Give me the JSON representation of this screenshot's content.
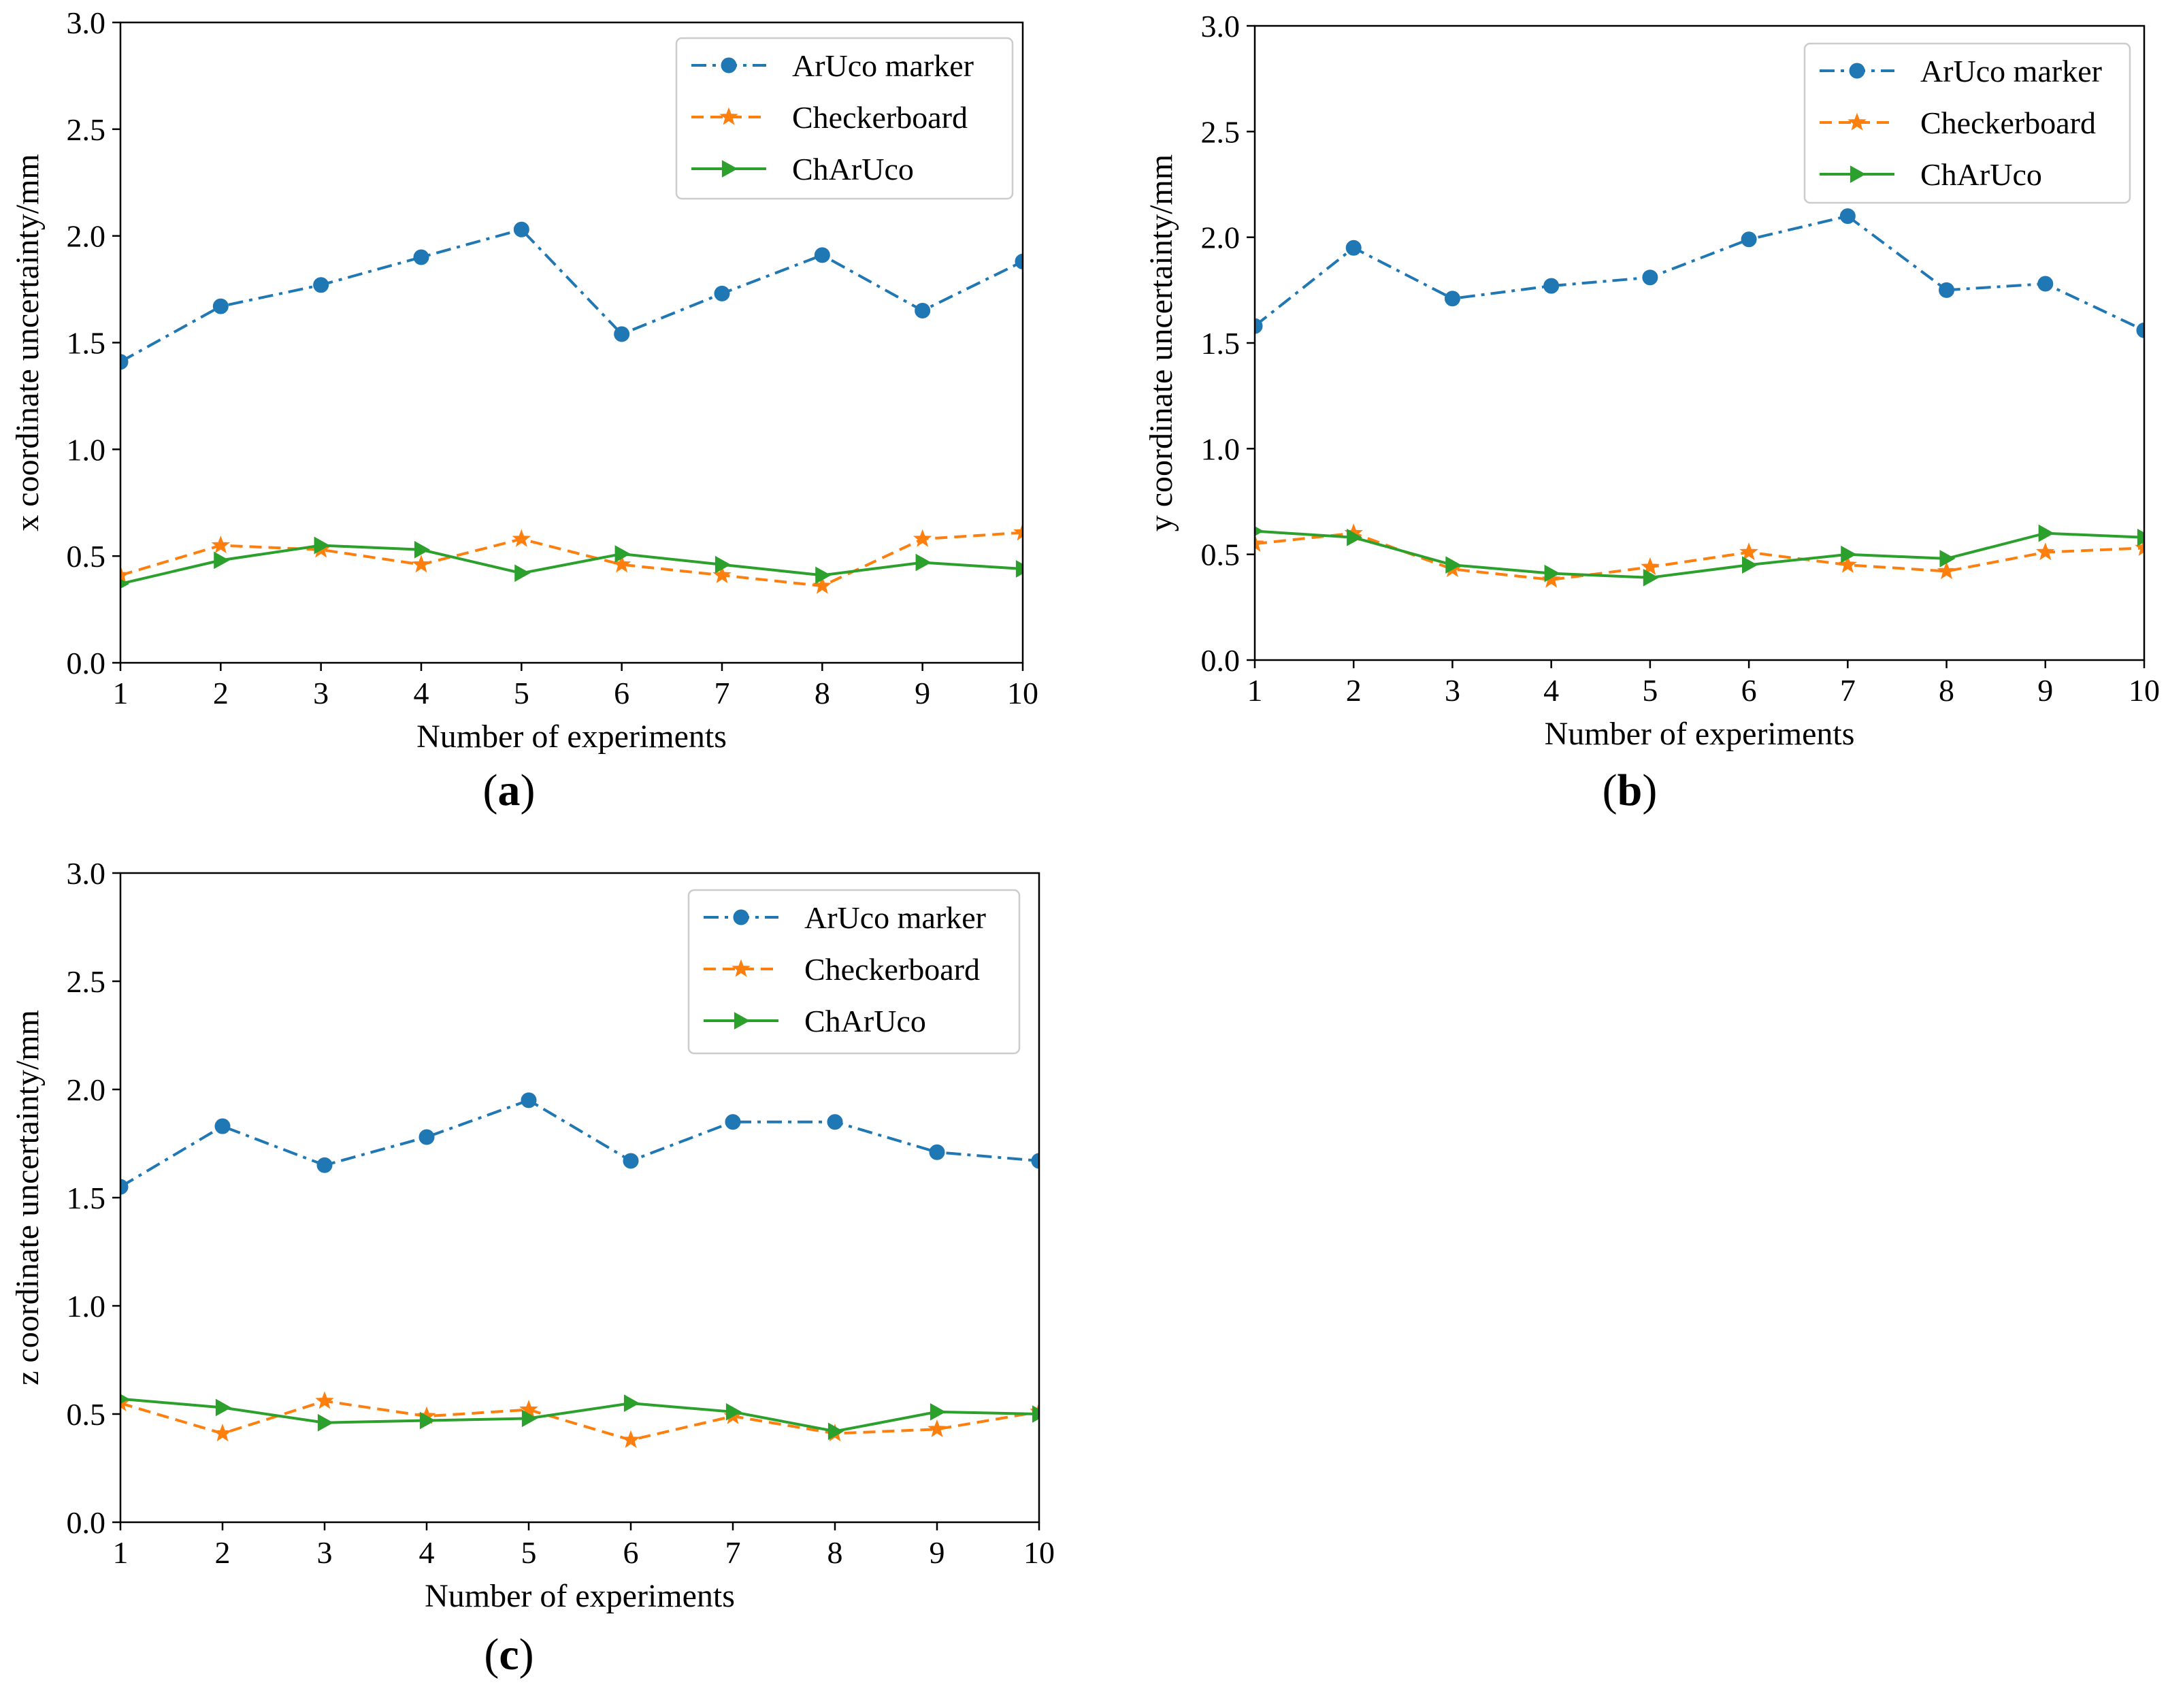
{
  "colors": {
    "aruco": "#1f77b4",
    "checkerboard": "#ff7f0e",
    "charuco": "#2ca02c"
  },
  "chart_data": [
    {
      "panel": "a",
      "panel_label": "a",
      "type": "line",
      "title": "",
      "xlabel": "Number of experiments",
      "ylabel": "x coordinate uncertainty/mm",
      "xlim": [
        1,
        10
      ],
      "ylim": [
        0.0,
        3.0
      ],
      "grid": false,
      "legend_position": "top-right",
      "xticks": [
        "1",
        "2",
        "3",
        "4",
        "5",
        "6",
        "7",
        "8",
        "9",
        "10"
      ],
      "yticks": [
        "0.0",
        "0.5",
        "1.0",
        "1.5",
        "2.0",
        "2.5",
        "3.0"
      ],
      "x": [
        1,
        2,
        3,
        4,
        5,
        6,
        7,
        8,
        9,
        10
      ],
      "series": [
        {
          "name": "ArUco marker",
          "style": "dashdot",
          "marker": "circle",
          "values": [
            1.41,
            1.67,
            1.77,
            1.9,
            2.03,
            1.54,
            1.73,
            1.91,
            1.65,
            1.88
          ]
        },
        {
          "name": "Checkerboard",
          "style": "dashed",
          "marker": "star",
          "values": [
            0.41,
            0.55,
            0.53,
            0.46,
            0.58,
            0.46,
            0.41,
            0.36,
            0.58,
            0.61
          ]
        },
        {
          "name": "ChArUco",
          "style": "solid",
          "marker": "triangle-right",
          "values": [
            0.37,
            0.48,
            0.55,
            0.53,
            0.42,
            0.51,
            0.46,
            0.41,
            0.47,
            0.44
          ]
        }
      ]
    },
    {
      "panel": "b",
      "panel_label": "b",
      "type": "line",
      "title": "",
      "xlabel": "Number of experiments",
      "ylabel": "y coordinate uncertainty/mm",
      "xlim": [
        1,
        10
      ],
      "ylim": [
        0.0,
        3.0
      ],
      "grid": false,
      "legend_position": "top-right",
      "xticks": [
        "1",
        "2",
        "3",
        "4",
        "5",
        "6",
        "7",
        "8",
        "9",
        "10"
      ],
      "yticks": [
        "0.0",
        "0.5",
        "1.0",
        "1.5",
        "2.0",
        "2.5",
        "3.0"
      ],
      "x": [
        1,
        2,
        3,
        4,
        5,
        6,
        7,
        8,
        9,
        10
      ],
      "series": [
        {
          "name": "ArUco marker",
          "style": "dashdot",
          "marker": "circle",
          "values": [
            1.58,
            1.95,
            1.71,
            1.77,
            1.81,
            1.99,
            2.1,
            1.75,
            1.78,
            1.56
          ]
        },
        {
          "name": "Checkerboard",
          "style": "dashed",
          "marker": "star",
          "values": [
            0.55,
            0.6,
            0.43,
            0.38,
            0.44,
            0.51,
            0.45,
            0.42,
            0.51,
            0.53
          ]
        },
        {
          "name": "ChArUco",
          "style": "solid",
          "marker": "triangle-right",
          "values": [
            0.61,
            0.58,
            0.45,
            0.41,
            0.39,
            0.45,
            0.5,
            0.48,
            0.6,
            0.58
          ]
        }
      ]
    },
    {
      "panel": "c",
      "panel_label": "c",
      "type": "line",
      "title": "",
      "xlabel": "Number of experiments",
      "ylabel": "z coordinate uncertainty/mm",
      "xlim": [
        1,
        10
      ],
      "ylim": [
        0.0,
        3.0
      ],
      "grid": false,
      "legend_position": "top-right",
      "xticks": [
        "1",
        "2",
        "3",
        "4",
        "5",
        "6",
        "7",
        "8",
        "9",
        "10"
      ],
      "yticks": [
        "0.0",
        "0.5",
        "1.0",
        "1.5",
        "2.0",
        "2.5",
        "3.0"
      ],
      "x": [
        1,
        2,
        3,
        4,
        5,
        6,
        7,
        8,
        9,
        10
      ],
      "series": [
        {
          "name": "ArUco marker",
          "style": "dashdot",
          "marker": "circle",
          "values": [
            1.55,
            1.83,
            1.65,
            1.78,
            1.95,
            1.67,
            1.85,
            1.85,
            1.71,
            1.67
          ]
        },
        {
          "name": "Checkerboard",
          "style": "dashed",
          "marker": "star",
          "values": [
            0.55,
            0.41,
            0.56,
            0.49,
            0.52,
            0.38,
            0.49,
            0.41,
            0.43,
            0.51
          ]
        },
        {
          "name": "ChArUco",
          "style": "solid",
          "marker": "triangle-right",
          "values": [
            0.57,
            0.53,
            0.46,
            0.47,
            0.48,
            0.55,
            0.51,
            0.42,
            0.51,
            0.5
          ]
        }
      ]
    }
  ]
}
